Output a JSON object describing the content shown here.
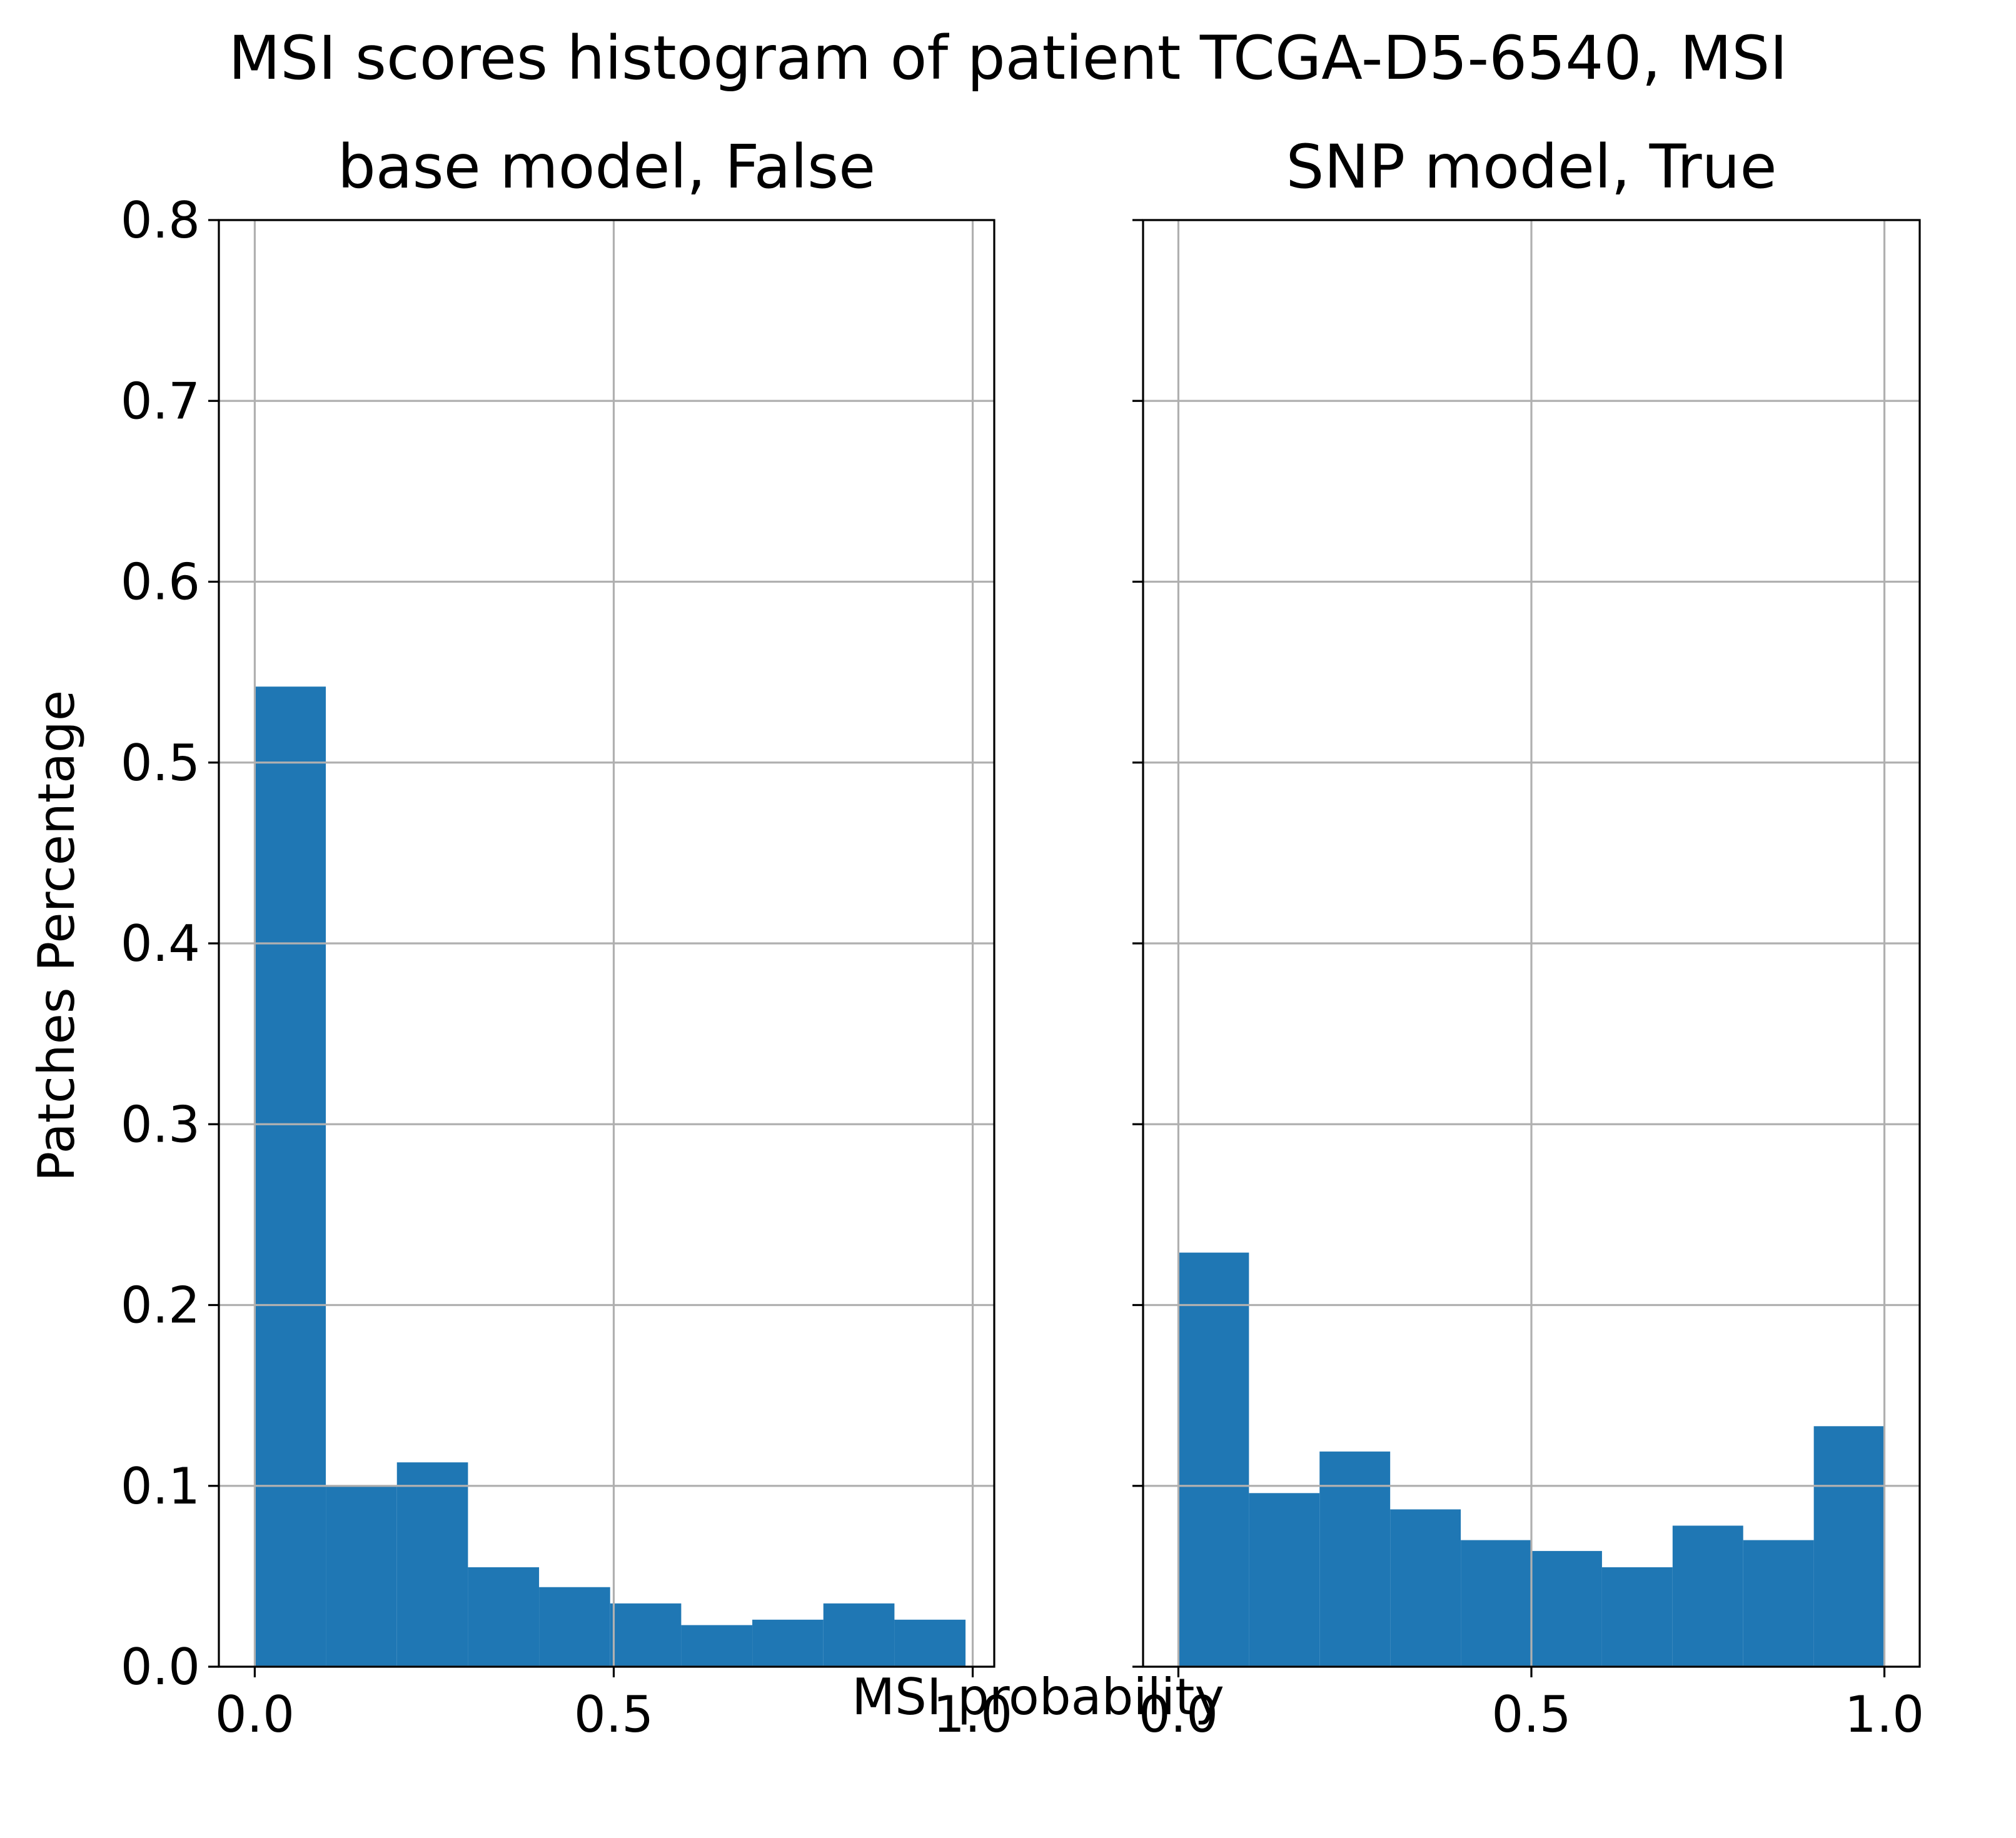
{
  "figure": {
    "suptitle": "MSI scores histogram of patient TCGA-D5-6540, MSI",
    "xlabel": "MSI probability",
    "ylabel": "Patches Percentage"
  },
  "chart_data": [
    {
      "type": "bar",
      "title": "base model, False",
      "xlabel": "MSI probability",
      "ylabel": "Patches Percentage",
      "bar_color": "#1f77b4",
      "grid": true,
      "xlim": [
        -0.05,
        1.03
      ],
      "ylim": [
        0,
        0.8
      ],
      "xticks": [
        0.0,
        0.5,
        1.0
      ],
      "xtick_labels": [
        "0.0",
        "0.5",
        "1.0"
      ],
      "yticks": [
        0.0,
        0.1,
        0.2,
        0.3,
        0.4,
        0.5,
        0.6,
        0.7,
        0.8
      ],
      "ytick_labels": [
        "0.0",
        "0.1",
        "0.2",
        "0.3",
        "0.4",
        "0.5",
        "0.6",
        "0.7",
        "0.8"
      ],
      "bin_edges": [
        0.0,
        0.099,
        0.198,
        0.297,
        0.396,
        0.495,
        0.594,
        0.693,
        0.792,
        0.891,
        0.99
      ],
      "values": [
        0.542,
        0.1,
        0.113,
        0.055,
        0.044,
        0.035,
        0.023,
        0.026,
        0.035,
        0.026
      ]
    },
    {
      "type": "bar",
      "title": "SNP model, True",
      "xlabel": "MSI probability",
      "ylabel": "Patches Percentage",
      "bar_color": "#1f77b4",
      "grid": true,
      "xlim": [
        -0.05,
        1.05
      ],
      "ylim": [
        0,
        0.8
      ],
      "xticks": [
        0.0,
        0.5,
        1.0
      ],
      "xtick_labels": [
        "0.0",
        "0.5",
        "1.0"
      ],
      "yticks": [
        0.0,
        0.1,
        0.2,
        0.3,
        0.4,
        0.5,
        0.6,
        0.7,
        0.8
      ],
      "ytick_labels": [
        "",
        "",
        "",
        "",
        "",
        "",
        "",
        "",
        ""
      ],
      "bin_edges": [
        0.0,
        0.1,
        0.2,
        0.3,
        0.4,
        0.5,
        0.6,
        0.7,
        0.8,
        0.9,
        1.0
      ],
      "values": [
        0.229,
        0.096,
        0.119,
        0.087,
        0.07,
        0.064,
        0.055,
        0.078,
        0.07,
        0.133
      ]
    }
  ]
}
